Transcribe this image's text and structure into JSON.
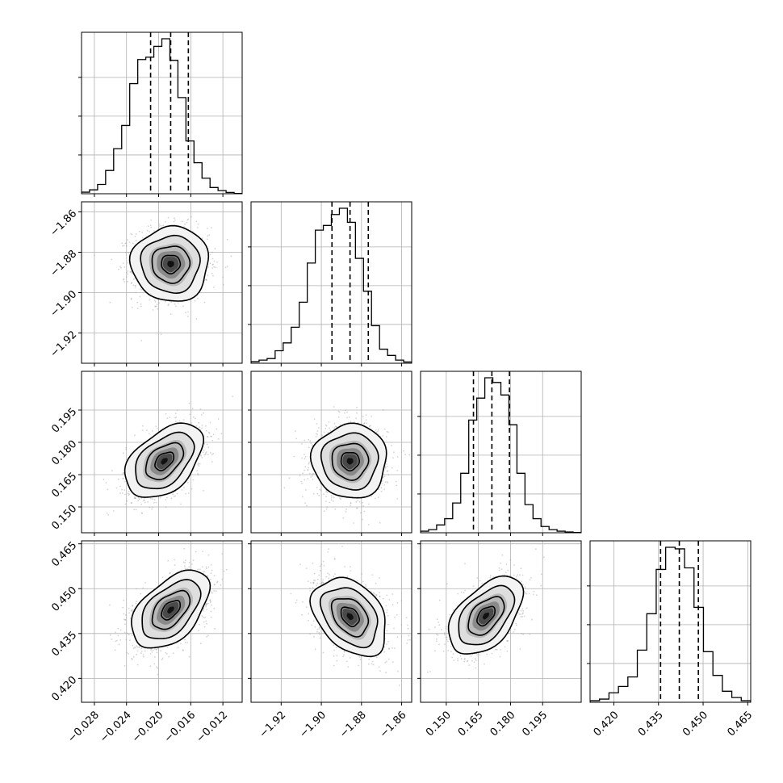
{
  "chart_data": {
    "type": "corner",
    "grid": true,
    "colors": {
      "line": "#000000",
      "grid": "#b0b0b0",
      "scatter": "#a0a0a0"
    },
    "parameters": [
      {
        "range": [
          -0.0296,
          -0.0096
        ],
        "ticks": [
          -0.028,
          -0.024,
          -0.02,
          -0.016,
          -0.012
        ],
        "tick_labels": [
          "−0.028",
          "−0.024",
          "−0.020",
          "−0.016",
          "−0.012"
        ],
        "median": -0.0185,
        "q16": -0.021,
        "q84": -0.0163,
        "hist": [
          0.01,
          0.025,
          0.06,
          0.15,
          0.29,
          0.44,
          0.71,
          0.865,
          0.88,
          0.95,
          0.999,
          0.86,
          0.62,
          0.34,
          0.2,
          0.1,
          0.04,
          0.02,
          0.008,
          0.002
        ]
      },
      {
        "range": [
          -1.935,
          -1.855
        ],
        "ticks": [
          -1.92,
          -1.9,
          -1.88,
          -1.86
        ],
        "tick_labels": [
          "−1.92",
          "−1.90",
          "−1.88",
          "−1.86"
        ],
        "median": -1.8857,
        "q16": -1.8947,
        "q84": -1.8766,
        "hist": [
          0.01,
          0.02,
          0.03,
          0.08,
          0.13,
          0.23,
          0.39,
          0.64,
          0.85,
          0.88,
          0.95,
          0.99,
          0.9,
          0.67,
          0.46,
          0.24,
          0.09,
          0.05,
          0.02,
          0.008
        ]
      },
      {
        "range": [
          0.138,
          0.213
        ],
        "ticks": [
          0.15,
          0.165,
          0.18,
          0.195
        ],
        "tick_labels": [
          "0.150",
          "0.165",
          "0.180",
          "0.195"
        ],
        "median": 0.1713,
        "q16": 0.1627,
        "q84": 0.1795,
        "hist": [
          0.01,
          0.02,
          0.05,
          0.09,
          0.19,
          0.38,
          0.72,
          0.86,
          0.99,
          0.96,
          0.88,
          0.69,
          0.38,
          0.18,
          0.09,
          0.04,
          0.02,
          0.01,
          0.005,
          0.002
        ]
      },
      {
        "range": [
          0.412,
          0.466
        ],
        "ticks": [
          0.42,
          0.435,
          0.45,
          0.465
        ],
        "tick_labels": [
          "0.420",
          "0.435",
          "0.450",
          "0.465"
        ],
        "median": 0.442,
        "q16": 0.4357,
        "q84": 0.4484,
        "hist": [
          0.01,
          0.02,
          0.06,
          0.1,
          0.16,
          0.33,
          0.56,
          0.84,
          0.98,
          0.97,
          0.85,
          0.6,
          0.32,
          0.17,
          0.07,
          0.03,
          0.01
        ]
      }
    ],
    "correlations": [
      {
        "i": 1,
        "j": 0,
        "rho": 0.0,
        "peak_x": -0.0185,
        "peak_y": -1.8858
      },
      {
        "i": 2,
        "j": 0,
        "rho": 0.45,
        "peak_x": -0.0193,
        "peak_y": 0.1713
      },
      {
        "i": 2,
        "j": 1,
        "rho": 0.0,
        "peak_x": -1.8857,
        "peak_y": 0.1713
      },
      {
        "i": 3,
        "j": 0,
        "rho": 0.5,
        "peak_x": -0.0185,
        "peak_y": 0.4429
      },
      {
        "i": 3,
        "j": 1,
        "rho": -0.35,
        "peak_x": -1.8857,
        "peak_y": 0.4407
      },
      {
        "i": 3,
        "j": 2,
        "rho": 0.5,
        "peak_x": 0.1685,
        "peak_y": 0.4409
      }
    ]
  }
}
